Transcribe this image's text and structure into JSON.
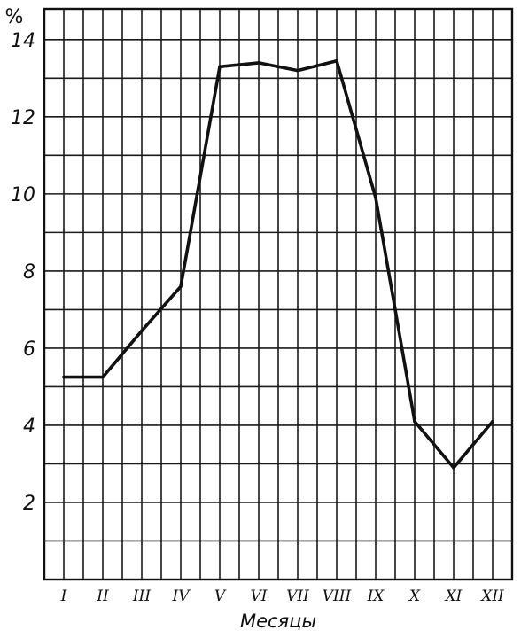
{
  "chart_data": {
    "type": "line",
    "title": "",
    "xlabel": "Месяцы",
    "ylabel": "%",
    "categories": [
      "I",
      "II",
      "III",
      "IV",
      "V",
      "VI",
      "VII",
      "VIII",
      "IX",
      "X",
      "XI",
      "XII"
    ],
    "series": [
      {
        "values": [
          5.25,
          5.25,
          6.45,
          7.6,
          13.3,
          13.4,
          13.2,
          13.45,
          9.9,
          4.1,
          2.9,
          4.1
        ]
      }
    ],
    "ylim": [
      0,
      14.8
    ],
    "yticks": [
      2,
      4,
      6,
      8,
      10,
      12,
      14
    ],
    "grid": true,
    "legend": "none",
    "line_color": "#111111"
  }
}
